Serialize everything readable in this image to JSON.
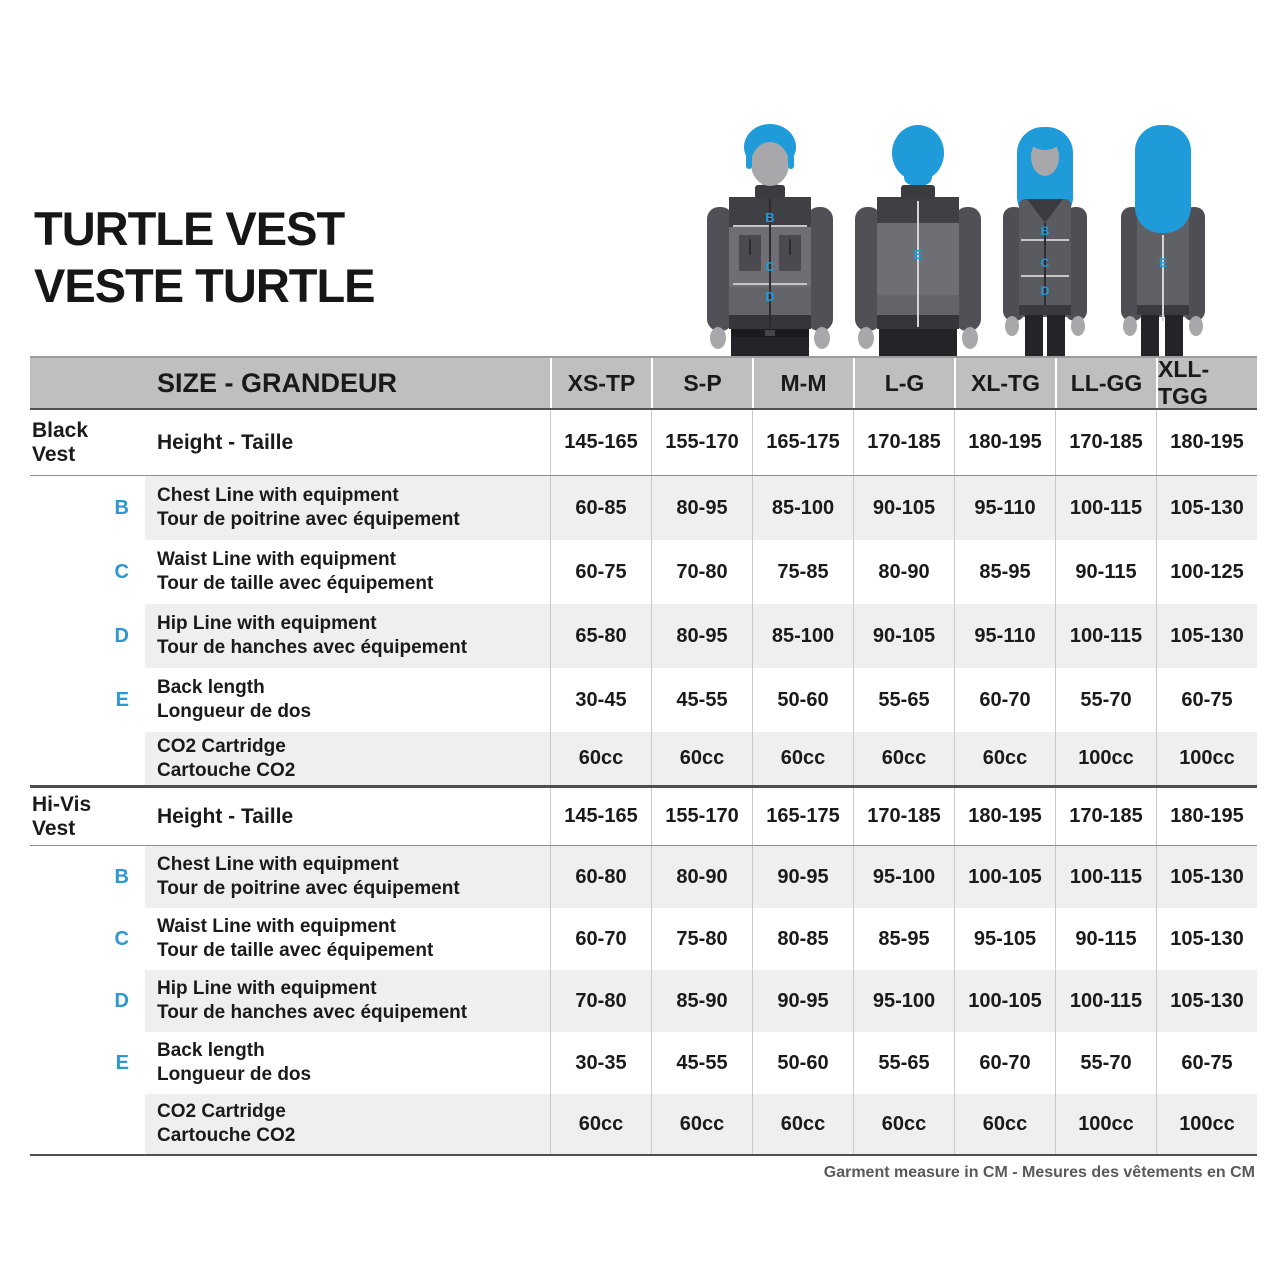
{
  "page": {
    "title_line1": "TURTLE VEST",
    "title_line2": "VESTE TURTLE",
    "footer": "Garment measure in CM -   Mesures des vêtements en CM"
  },
  "colors": {
    "accent_blue": "#1e9bd8",
    "letter_blue": "#2e96d0",
    "header_band": "#bfbfbf",
    "row_stripe": "#efefef",
    "text": "#1a1a1a",
    "footer_text": "#58595b"
  },
  "figures": {
    "measure_points_front": [
      "B",
      "C",
      "D"
    ],
    "measure_point_back": "E"
  },
  "table": {
    "header_label": "SIZE - GRANDEUR",
    "sizes": [
      "XS-TP",
      "S-P",
      "M-M",
      "L-G",
      "XL-TG",
      "LL-GG",
      "XLL-TGG"
    ],
    "sections": [
      {
        "key": "black",
        "name": "Black Vest",
        "height": {
          "label": "Height - Taille",
          "values": [
            "145-165",
            "155-170",
            "165-175",
            "170-185",
            "180-195",
            "170-185",
            "180-195"
          ]
        },
        "rows": [
          {
            "key": "chest",
            "letter": "B",
            "en": "Chest Line with equipment",
            "fr": "Tour de poitrine avec équipement",
            "stripe": true,
            "co2": false,
            "values": [
              "60-85",
              "80-95",
              "85-100",
              "90-105",
              "95-110",
              "100-115",
              "105-130"
            ]
          },
          {
            "key": "waist",
            "letter": "C",
            "en": "Waist Line with equipment",
            "fr": "Tour de taille avec équipement",
            "stripe": false,
            "co2": false,
            "values": [
              "60-75",
              "70-80",
              "75-85",
              "80-90",
              "85-95",
              "90-115",
              "100-125"
            ]
          },
          {
            "key": "hip",
            "letter": "D",
            "en": "Hip Line with equipment",
            "fr": "Tour de hanches avec équipement",
            "stripe": true,
            "co2": false,
            "values": [
              "65-80",
              "80-95",
              "85-100",
              "90-105",
              "95-110",
              "100-115",
              "105-130"
            ]
          },
          {
            "key": "back",
            "letter": "E",
            "en": "Back length",
            "fr": "Longueur de dos",
            "stripe": false,
            "co2": false,
            "values": [
              "30-45",
              "45-55",
              "50-60",
              "55-65",
              "60-70",
              "55-70",
              "60-75"
            ]
          },
          {
            "key": "co2",
            "letter": "",
            "en": "CO2 Cartridge",
            "fr": "Cartouche CO2",
            "stripe": true,
            "co2": true,
            "values": [
              "60cc",
              "60cc",
              "60cc",
              "60cc",
              "60cc",
              "100cc",
              "100cc"
            ]
          }
        ]
      },
      {
        "key": "hivis",
        "name": "Hi-Vis Vest",
        "height": {
          "label": "Height - Taille",
          "values": [
            "145-165",
            "155-170",
            "165-175",
            "170-185",
            "180-195",
            "170-185",
            "180-195"
          ]
        },
        "rows": [
          {
            "key": "chest",
            "letter": "B",
            "en": "Chest Line with equipment",
            "fr": "Tour de poitrine avec équipement",
            "stripe": true,
            "co2": false,
            "values": [
              "60-80",
              "80-90",
              "90-95",
              "95-100",
              "100-105",
              "100-115",
              "105-130"
            ]
          },
          {
            "key": "waist",
            "letter": "C",
            "en": "Waist Line with equipment",
            "fr": "Tour de taille avec équipement",
            "stripe": false,
            "co2": false,
            "values": [
              "60-70",
              "75-80",
              "80-85",
              "85-95",
              "95-105",
              "90-115",
              "105-130"
            ]
          },
          {
            "key": "hip",
            "letter": "D",
            "en": "Hip Line with equipment",
            "fr": "Tour de hanches avec équipement",
            "stripe": true,
            "co2": false,
            "values": [
              "70-80",
              "85-90",
              "90-95",
              "95-100",
              "100-105",
              "100-115",
              "105-130"
            ]
          },
          {
            "key": "back",
            "letter": "E",
            "en": "Back length",
            "fr": "Longueur de dos",
            "stripe": false,
            "co2": false,
            "values": [
              "30-35",
              "45-55",
              "50-60",
              "55-65",
              "60-70",
              "55-70",
              "60-75"
            ]
          },
          {
            "key": "co2",
            "letter": "",
            "en": "CO2 Cartridge",
            "fr": "Cartouche CO2",
            "stripe": true,
            "co2": true,
            "values": [
              "60cc",
              "60cc",
              "60cc",
              "60cc",
              "60cc",
              "100cc",
              "100cc"
            ]
          }
        ]
      }
    ]
  }
}
